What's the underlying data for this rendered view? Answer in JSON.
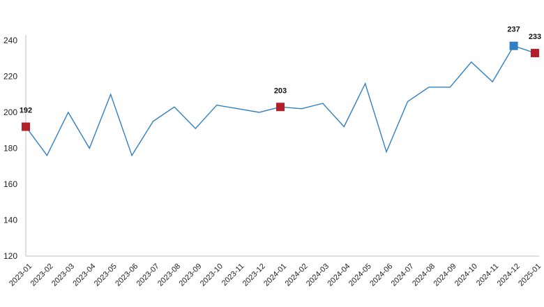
{
  "chart_data": {
    "type": "line",
    "title": "",
    "xlabel": "",
    "ylabel": "",
    "ylim": [
      120,
      240
    ],
    "yticks": [
      120,
      140,
      160,
      180,
      200,
      220,
      240
    ],
    "grid": false,
    "categories": [
      "2023-01",
      "2023-02",
      "2023-03",
      "2023-04",
      "2023-05",
      "2023-06",
      "2023-07",
      "2023-08",
      "2023-09",
      "2023-10",
      "2023-11",
      "2023-12",
      "2024-01",
      "2024-02",
      "2024-03",
      "2024-04",
      "2024-05",
      "2024-06",
      "2024-07",
      "2024-08",
      "2024-09",
      "2024-10",
      "2024-11",
      "2024-12",
      "2025-01"
    ],
    "series": [
      {
        "values": [
          192,
          176,
          200,
          180,
          210,
          176,
          195,
          203,
          191,
          204,
          202,
          200,
          203,
          202,
          205,
          192,
          216,
          178,
          206,
          214,
          214,
          228,
          217,
          237,
          233
        ],
        "color": "#2f7fc1"
      }
    ],
    "highlighted_points": [
      {
        "category": "2023-01",
        "value": 192,
        "label": "192",
        "color": "#b22028"
      },
      {
        "category": "2024-01",
        "value": 203,
        "label": "203",
        "color": "#b22028"
      },
      {
        "category": "2024-12",
        "value": 237,
        "label": "237",
        "color": "#2f7fc1"
      },
      {
        "category": "2025-01",
        "value": 233,
        "label": "233",
        "color": "#b22028"
      }
    ],
    "axis_color": "#bfbfbf"
  }
}
